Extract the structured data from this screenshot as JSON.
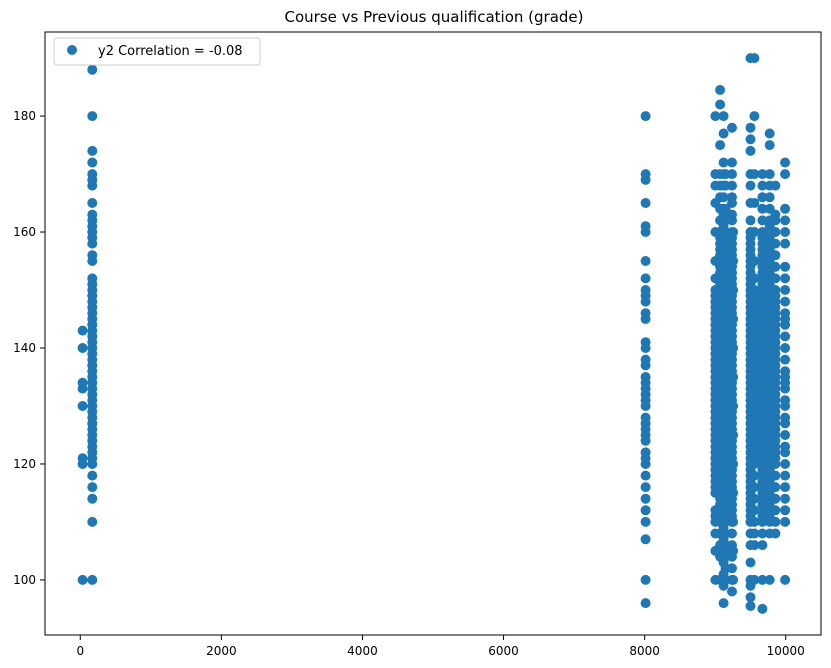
{
  "chart_data": {
    "type": "scatter",
    "title": "Course vs Previous qualification (grade)",
    "xlabel": "",
    "ylabel": "",
    "xlim": [
      -500,
      10500
    ],
    "ylim": [
      90.5,
      194.5
    ],
    "xticks": [
      0,
      2000,
      4000,
      6000,
      8000,
      10000
    ],
    "yticks": [
      100,
      120,
      140,
      160,
      180
    ],
    "grid": false,
    "legend_position": "upper-left",
    "point_color": "#1f77b4",
    "series": [
      {
        "name": "y2 Correlation = -0.08",
        "columns": [
          {
            "x": 33,
            "y": [
              100,
              120,
              121,
              130,
              133,
              134,
              140,
              143
            ]
          },
          {
            "x": 171,
            "y": [
              100,
              110,
              114,
              116,
              118,
              120,
              121,
              122,
              123,
              124,
              125,
              126,
              127,
              128,
              129,
              130,
              131,
              132,
              133,
              134,
              135,
              136,
              137,
              138,
              139,
              140,
              141,
              142,
              143,
              144,
              145,
              146,
              147,
              148,
              149,
              150,
              151,
              152,
              155,
              156,
              158,
              159,
              160,
              161,
              162,
              163,
              165,
              168,
              169,
              170,
              172,
              174,
              180,
              188
            ]
          },
          {
            "x": 8014,
            "y": [
              96,
              100,
              107,
              110,
              112,
              114,
              116,
              118,
              120,
              121,
              122,
              124,
              125,
              126,
              127,
              128,
              130,
              131,
              132,
              133,
              134,
              135,
              137,
              138,
              140,
              141,
              145,
              146,
              148,
              149,
              150,
              152,
              155,
              160,
              161,
              165,
              169,
              170,
              180
            ]
          },
          {
            "x": 9003,
            "y": [
              100,
              105,
              108,
              110,
              111,
              112,
              115,
              116,
              117,
              118,
              119,
              120,
              121,
              122,
              123,
              124,
              125,
              126,
              127,
              128,
              129,
              130,
              131,
              132,
              133,
              134,
              135,
              136,
              137,
              138,
              139,
              140,
              141,
              142,
              143,
              144,
              145,
              146,
              147,
              148,
              149,
              150,
              152,
              155,
              160,
              165,
              168,
              170,
              180
            ]
          },
          {
            "x": 9070,
            "y": [
              100,
              104,
              106,
              108,
              110,
              111,
              112,
              113,
              114,
              115,
              116,
              117,
              118,
              119,
              120,
              121,
              122,
              123,
              124,
              125,
              126,
              127,
              128,
              129,
              130,
              131,
              132,
              133,
              134,
              135,
              136,
              137,
              138,
              139,
              140,
              141,
              142,
              143,
              144,
              145,
              146,
              147,
              148,
              149,
              150,
              151,
              152,
              153,
              154,
              155,
              156,
              157,
              158,
              159,
              160,
              162,
              164,
              166,
              168,
              170,
              175,
              182,
              184.5
            ]
          },
          {
            "x": 9119,
            "y": [
              96,
              99,
              101,
              103,
              105,
              107,
              109,
              110,
              111,
              112,
              113,
              114,
              115,
              116,
              117,
              118,
              119,
              120,
              121,
              122,
              123,
              124,
              125,
              126,
              127,
              128,
              129,
              130,
              131,
              132,
              133,
              134,
              135,
              136,
              137,
              138,
              139,
              140,
              141,
              142,
              143,
              144,
              145,
              146,
              147,
              148,
              149,
              150,
              151,
              152,
              153,
              154,
              155,
              156,
              157,
              158,
              159,
              160,
              161,
              162,
              163,
              164,
              166,
              168,
              170,
              172,
              177,
              180
            ]
          },
          {
            "x": 9147,
            "y": [
              100,
              102,
              104,
              106,
              108,
              110,
              111,
              112,
              113,
              114,
              115,
              116,
              117,
              118,
              119,
              120,
              121,
              122,
              123,
              124,
              125,
              126,
              127,
              128,
              129,
              130,
              131,
              132,
              133,
              134,
              135,
              136,
              137,
              138,
              139,
              140,
              141,
              142,
              143,
              144,
              145,
              146,
              147,
              148,
              149,
              150,
              151,
              152,
              153,
              154,
              155,
              156,
              157,
              158,
              160,
              162,
              164,
              168,
              170
            ]
          },
          {
            "x": 9238,
            "y": [
              98,
              100,
              102,
              104,
              106,
              108,
              110,
              111,
              112,
              113,
              114,
              115,
              116,
              117,
              118,
              119,
              120,
              121,
              122,
              123,
              124,
              125,
              126,
              127,
              128,
              129,
              130,
              131,
              132,
              133,
              134,
              135,
              136,
              137,
              138,
              139,
              140,
              141,
              142,
              143,
              144,
              145,
              146,
              147,
              148,
              149,
              150,
              151,
              152,
              153,
              154,
              155,
              156,
              157,
              158,
              159,
              160,
              162,
              163,
              165,
              166,
              168,
              170,
              172,
              178
            ]
          },
          {
            "x": 9254,
            "y": [
              100,
              105,
              110,
              115,
              120,
              125,
              130,
              135,
              140,
              145,
              150,
              155,
              160
            ]
          },
          {
            "x": 9500,
            "y": [
              95.5,
              97,
              99,
              100,
              103,
              106,
              108,
              110,
              111,
              112,
              113,
              114,
              115,
              116,
              117,
              118,
              119,
              120,
              121,
              122,
              123,
              124,
              125,
              126,
              127,
              128,
              129,
              130,
              131,
              132,
              133,
              134,
              135,
              136,
              137,
              138,
              139,
              140,
              141,
              142,
              143,
              144,
              145,
              146,
              147,
              148,
              149,
              150,
              151,
              152,
              153,
              154,
              155,
              156,
              157,
              158,
              159,
              160,
              162,
              165,
              168,
              170,
              174,
              176,
              178,
              190
            ]
          },
          {
            "x": 9556,
            "y": [
              100,
              106,
              108,
              110,
              112,
              114,
              116,
              118,
              120,
              121,
              122,
              123,
              124,
              125,
              126,
              127,
              128,
              129,
              130,
              131,
              132,
              133,
              134,
              135,
              136,
              137,
              138,
              139,
              140,
              141,
              142,
              143,
              144,
              145,
              146,
              147,
              148,
              149,
              150,
              152,
              155,
              160,
              165,
              170,
              180,
              190
            ]
          },
          {
            "x": 9670,
            "y": [
              95,
              100,
              106,
              108,
              110,
              111,
              112,
              113,
              114,
              115,
              116,
              117,
              118,
              119,
              120,
              121,
              122,
              123,
              124,
              125,
              126,
              127,
              128,
              129,
              130,
              131,
              132,
              133,
              134,
              135,
              136,
              137,
              138,
              139,
              140,
              141,
              142,
              143,
              144,
              145,
              146,
              147,
              148,
              149,
              150,
              151,
              152,
              153,
              154,
              155,
              156,
              157,
              158,
              159,
              160,
              162,
              164,
              166,
              168,
              170
            ]
          },
          {
            "x": 9773,
            "y": [
              100,
              108,
              110,
              111,
              112,
              113,
              114,
              115,
              116,
              117,
              118,
              119,
              120,
              121,
              122,
              123,
              124,
              125,
              126,
              127,
              128,
              129,
              130,
              131,
              132,
              133,
              134,
              135,
              136,
              137,
              138,
              139,
              140,
              141,
              142,
              143,
              144,
              145,
              146,
              147,
              148,
              149,
              150,
              151,
              152,
              153,
              154,
              155,
              156,
              157,
              158,
              159,
              160,
              161,
              162,
              164,
              166,
              168,
              170,
              175,
              177
            ]
          },
          {
            "x": 9853,
            "y": [
              108,
              110,
              112,
              114,
              116,
              118,
              120,
              121,
              122,
              123,
              124,
              125,
              126,
              127,
              128,
              129,
              130,
              131,
              132,
              133,
              134,
              135,
              136,
              137,
              138,
              139,
              140,
              141,
              142,
              143,
              144,
              145,
              146,
              147,
              148,
              149,
              150,
              152,
              154,
              156,
              158,
              160,
              162,
              163,
              168
            ]
          },
          {
            "x": 9991,
            "y": [
              100,
              110,
              112,
              114,
              116,
              118,
              120,
              122,
              123,
              125,
              127,
              128,
              130,
              131,
              133,
              134,
              135,
              136,
              138,
              140,
              142,
              144,
              145,
              146,
              148,
              150,
              152,
              154,
              158,
              160,
              162,
              164,
              170,
              172
            ]
          }
        ]
      }
    ]
  }
}
